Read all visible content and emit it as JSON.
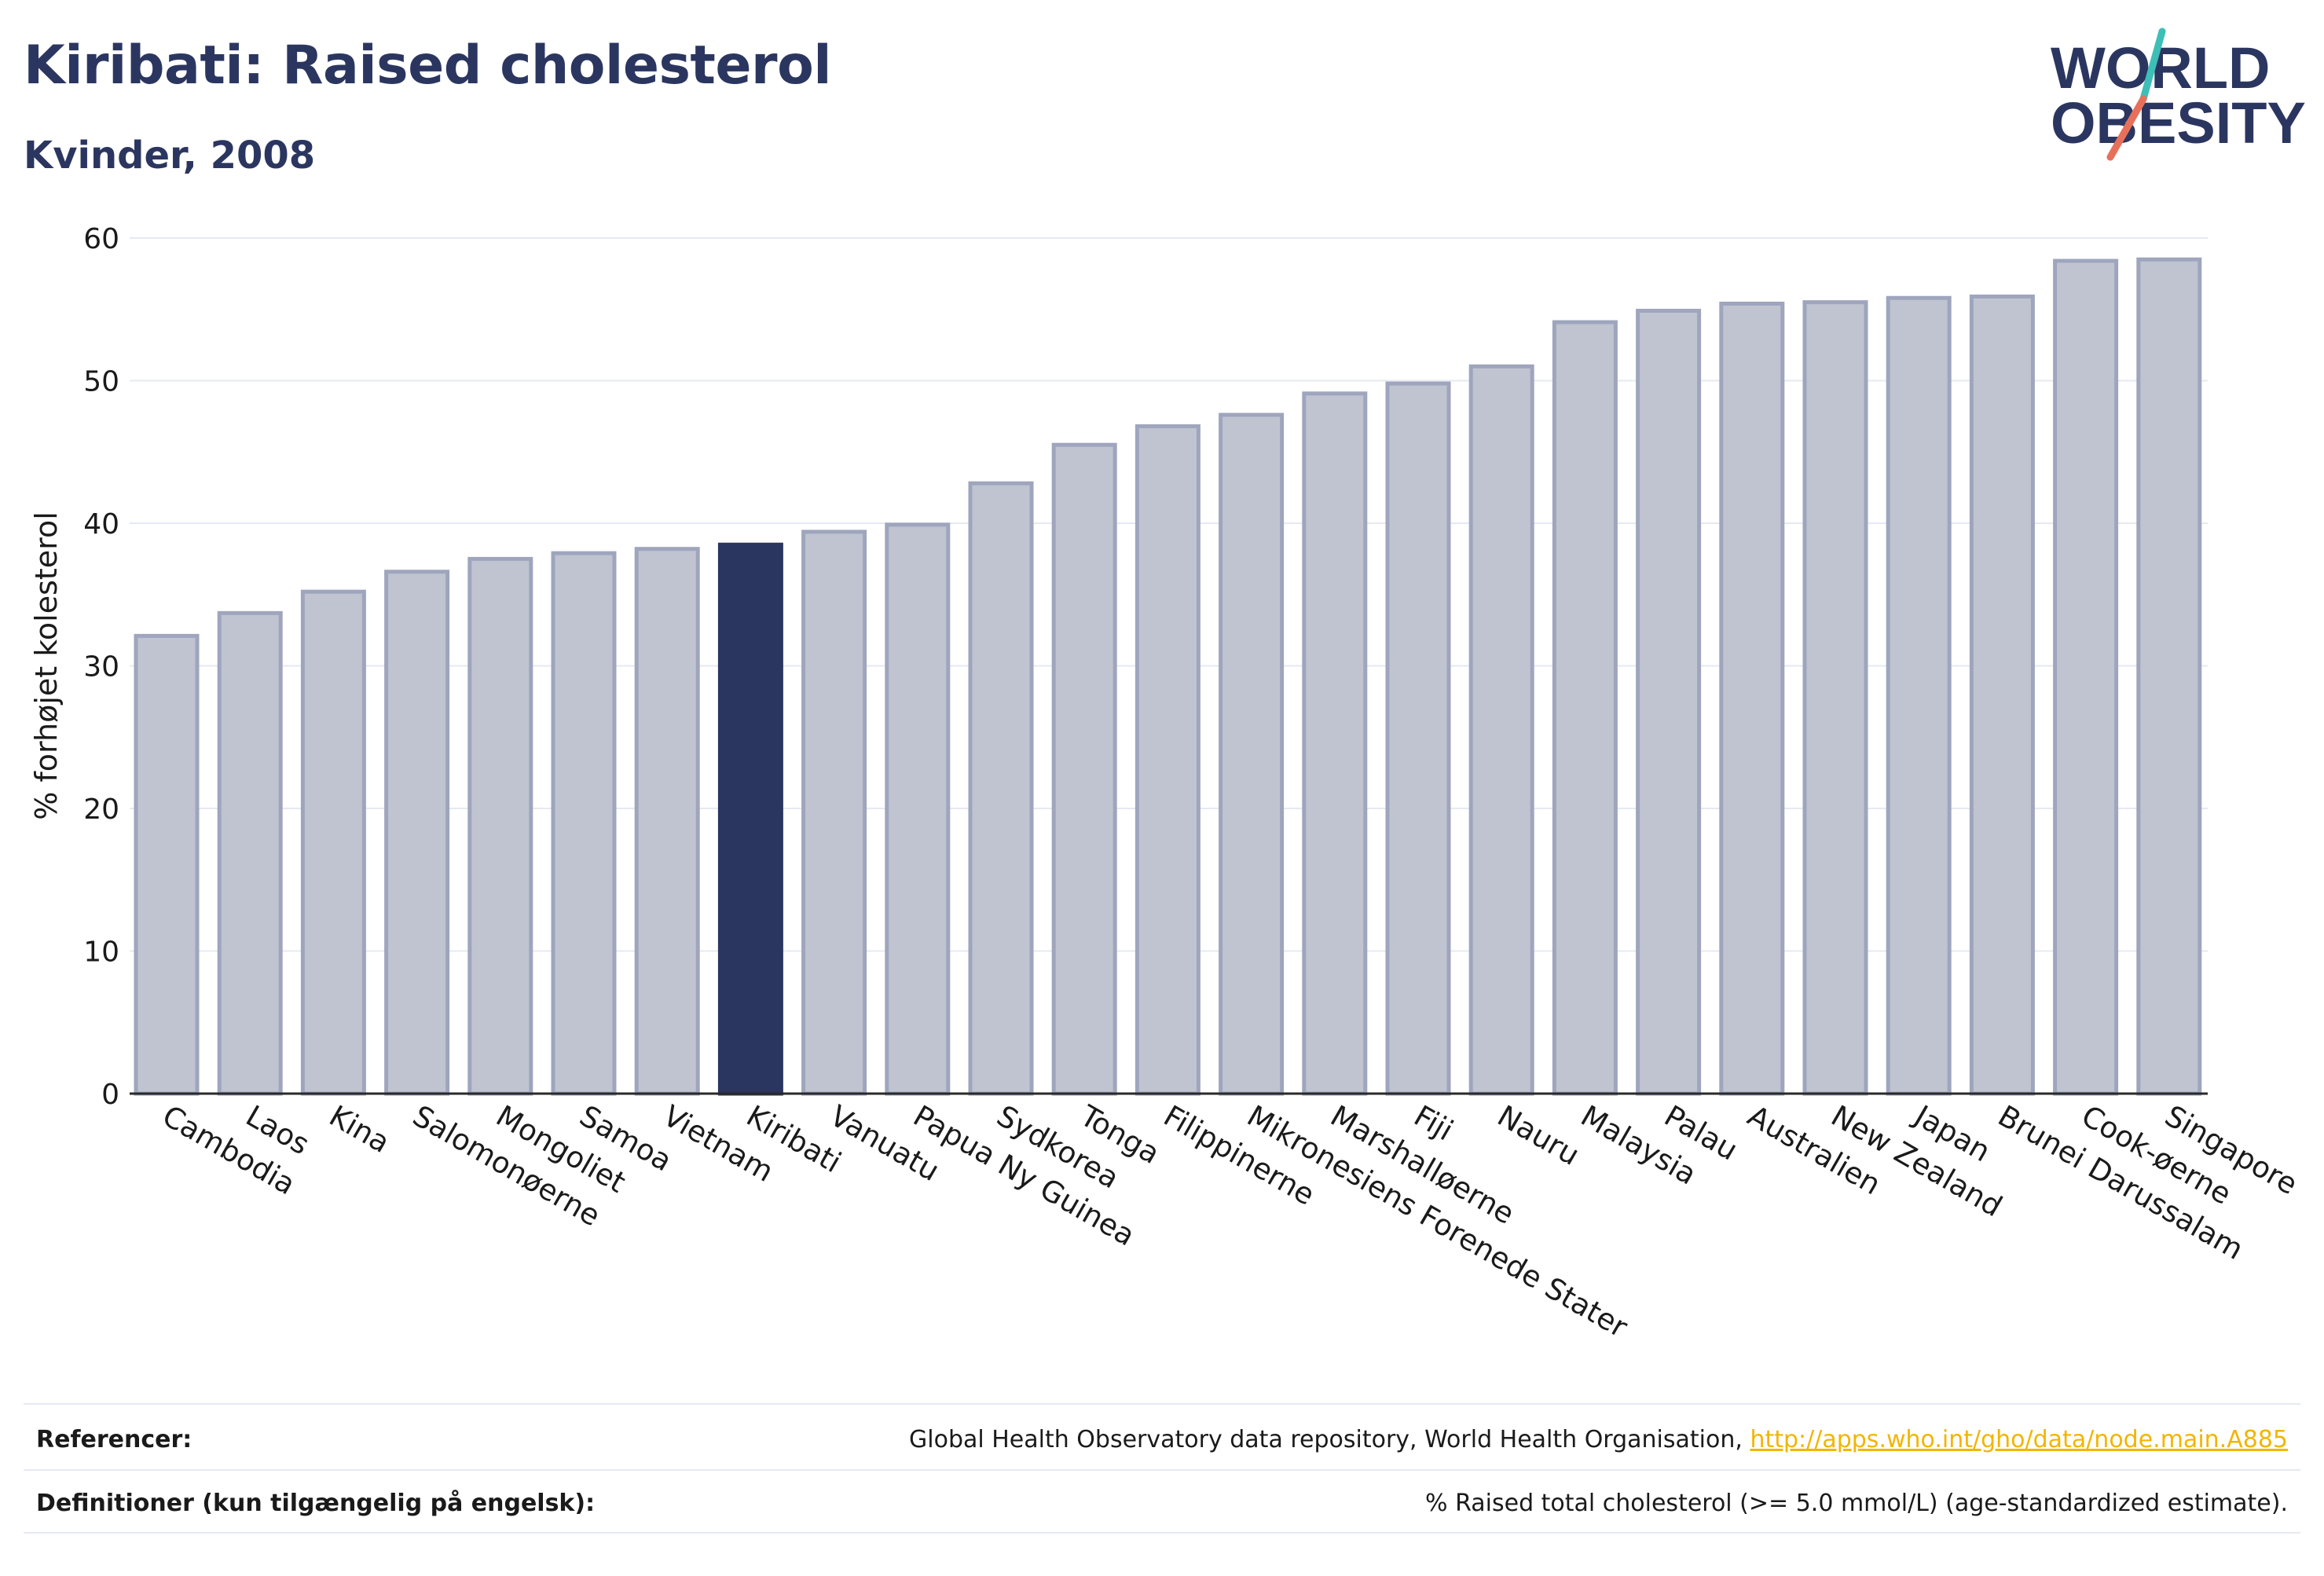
{
  "header": {
    "title": "Kiribati: Raised cholesterol",
    "subtitle": "Kvinder, 2008"
  },
  "logo": {
    "line1": "WORLD",
    "line2": "OBESITY"
  },
  "colors": {
    "brand_navy": "#2b3660",
    "bar_fill": "#c0c4d1",
    "bar_stroke": "#9ea5bd",
    "highlight": "#2b3660",
    "link": "#f2b500",
    "logo_teal": "#3dbfb8",
    "logo_coral": "#e8705b"
  },
  "chart_data": {
    "type": "bar",
    "title": "Kiribati: Raised cholesterol",
    "subtitle": "Kvinder, 2008",
    "xlabel": "",
    "ylabel": "% forhøjet kolesterol",
    "ylim": [
      0,
      60
    ],
    "yticks": [
      0,
      10,
      20,
      30,
      40,
      50,
      60
    ],
    "grid": true,
    "highlight": "Kiribati",
    "categories": [
      "Cambodia",
      "Laos",
      "Kina",
      "Salomonøerne",
      "Mongoliet",
      "Samoa",
      "Vietnam",
      "Kiribati",
      "Vanuatu",
      "Papua Ny Guinea",
      "Sydkorea",
      "Tonga",
      "Filippinerne",
      "Mikronesiens Forenede Stater",
      "Marshalløerne",
      "Fiji",
      "Nauru",
      "Malaysia",
      "Palau",
      "Australien",
      "New Zealand",
      "Japan",
      "Brunei Darussalam",
      "Cook-øerne",
      "Singapore"
    ],
    "values": [
      32.1,
      33.7,
      35.2,
      36.6,
      37.5,
      37.9,
      38.2,
      38.5,
      39.4,
      39.9,
      42.8,
      45.5,
      46.8,
      47.6,
      49.1,
      49.8,
      51.0,
      54.1,
      54.9,
      55.4,
      55.5,
      55.8,
      55.9,
      58.4,
      58.5
    ]
  },
  "footer": {
    "references_label": "Referencer:",
    "references_text": "Global Health Observatory data repository, World Health Organisation, ",
    "references_link": "http://apps.who.int/gho/data/node.main.A885",
    "definitions_label": "Definitioner (kun tilgængelig på engelsk):",
    "definitions_text": "% Raised total cholesterol (>= 5.0 mmol/L) (age-standardized estimate)."
  }
}
